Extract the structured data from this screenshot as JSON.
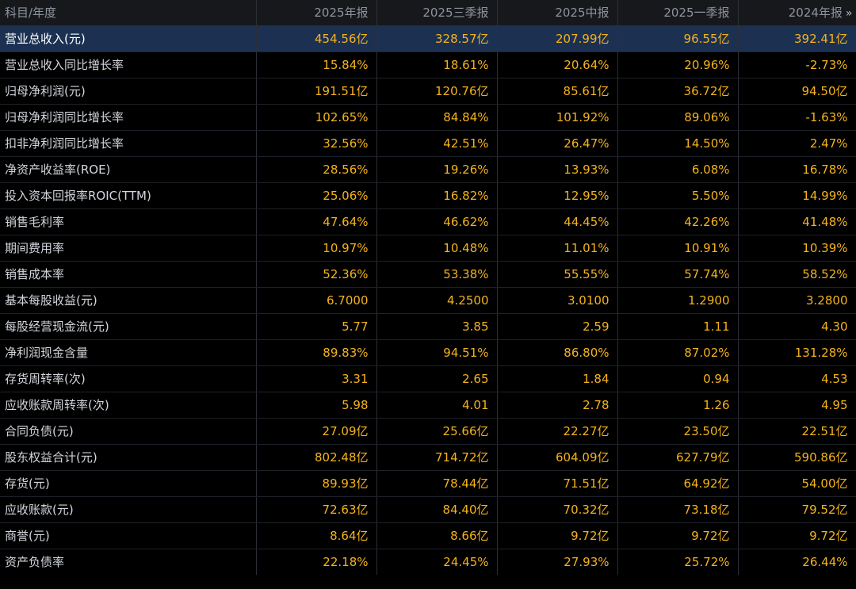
{
  "header": {
    "label_col": "科目/年度",
    "periods": [
      "2025年报",
      "2025三季报",
      "2025中报",
      "2025一季报",
      "2024年报"
    ],
    "more_icon": "chevron-double-right-icon"
  },
  "rows": [
    {
      "label": "营业总收入(元)",
      "values": [
        "454.56亿",
        "328.57亿",
        "207.99亿",
        "96.55亿",
        "392.41亿"
      ],
      "highlight": true
    },
    {
      "label": "营业总收入同比增长率",
      "values": [
        "15.84%",
        "18.61%",
        "20.64%",
        "20.96%",
        "-2.73%"
      ]
    },
    {
      "label": "归母净利润(元)",
      "values": [
        "191.51亿",
        "120.76亿",
        "85.61亿",
        "36.72亿",
        "94.50亿"
      ]
    },
    {
      "label": "归母净利润同比增长率",
      "values": [
        "102.65%",
        "84.84%",
        "101.92%",
        "89.06%",
        "-1.63%"
      ]
    },
    {
      "label": "扣非净利润同比增长率",
      "values": [
        "32.56%",
        "42.51%",
        "26.47%",
        "14.50%",
        "2.47%"
      ]
    },
    {
      "label": "净资产收益率(ROE)",
      "values": [
        "28.56%",
        "19.26%",
        "13.93%",
        "6.08%",
        "16.78%"
      ]
    },
    {
      "label": "投入资本回报率ROIC(TTM)",
      "values": [
        "25.06%",
        "16.82%",
        "12.95%",
        "5.50%",
        "14.99%"
      ]
    },
    {
      "label": "销售毛利率",
      "values": [
        "47.64%",
        "46.62%",
        "44.45%",
        "42.26%",
        "41.48%"
      ]
    },
    {
      "label": "期间费用率",
      "values": [
        "10.97%",
        "10.48%",
        "11.01%",
        "10.91%",
        "10.39%"
      ]
    },
    {
      "label": "销售成本率",
      "values": [
        "52.36%",
        "53.38%",
        "55.55%",
        "57.74%",
        "58.52%"
      ]
    },
    {
      "label": "基本每股收益(元)",
      "values": [
        "6.7000",
        "4.2500",
        "3.0100",
        "1.2900",
        "3.2800"
      ]
    },
    {
      "label": "每股经营现金流(元)",
      "values": [
        "5.77",
        "3.85",
        "2.59",
        "1.11",
        "4.30"
      ]
    },
    {
      "label": "净利润现金含量",
      "values": [
        "89.83%",
        "94.51%",
        "86.80%",
        "87.02%",
        "131.28%"
      ]
    },
    {
      "label": "存货周转率(次)",
      "values": [
        "3.31",
        "2.65",
        "1.84",
        "0.94",
        "4.53"
      ]
    },
    {
      "label": "应收账款周转率(次)",
      "values": [
        "5.98",
        "4.01",
        "2.78",
        "1.26",
        "4.95"
      ]
    },
    {
      "label": "合同负债(元)",
      "values": [
        "27.09亿",
        "25.66亿",
        "22.27亿",
        "23.50亿",
        "22.51亿"
      ]
    },
    {
      "label": "股东权益合计(元)",
      "values": [
        "802.48亿",
        "714.72亿",
        "604.09亿",
        "627.79亿",
        "590.86亿"
      ]
    },
    {
      "label": "存货(元)",
      "values": [
        "89.93亿",
        "78.44亿",
        "71.51亿",
        "64.92亿",
        "54.00亿"
      ]
    },
    {
      "label": "应收账款(元)",
      "values": [
        "72.63亿",
        "84.40亿",
        "70.32亿",
        "73.18亿",
        "79.52亿"
      ]
    },
    {
      "label": "商誉(元)",
      "values": [
        "8.64亿",
        "8.66亿",
        "9.72亿",
        "9.72亿",
        "9.72亿"
      ]
    },
    {
      "label": "资产负债率",
      "values": [
        "22.18%",
        "24.45%",
        "27.93%",
        "25.72%",
        "26.44%"
      ]
    }
  ],
  "colors": {
    "background": "#000000",
    "header_bg": "#16181c",
    "highlight_row_bg": "#1c3152",
    "value_text": "#f5b31b",
    "label_text": "#d2d6dc"
  }
}
